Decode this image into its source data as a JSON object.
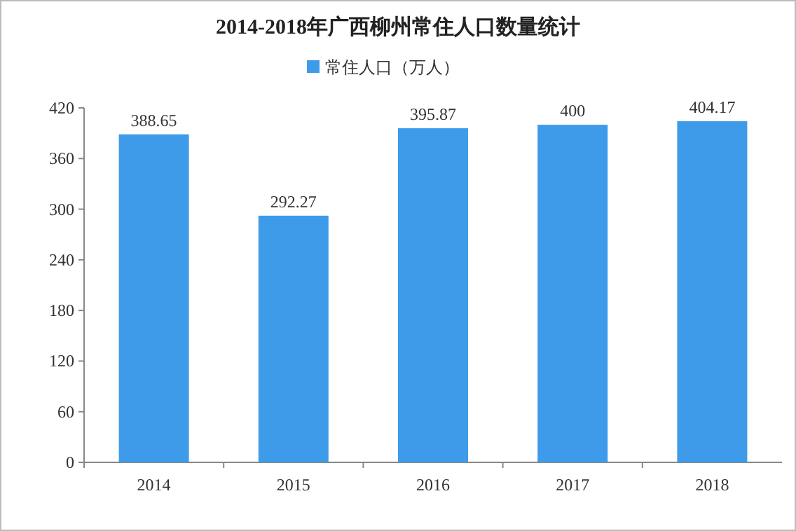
{
  "chart_data": {
    "type": "bar",
    "title": "2014-2018年广西柳州常住人口数量统计",
    "categories": [
      "2014",
      "2015",
      "2016",
      "2017",
      "2018"
    ],
    "series": [
      {
        "name": "常住人口（万人）",
        "color": "#3d9be9",
        "values": [
          388.65,
          292.27,
          395.87,
          400,
          404.17
        ]
      }
    ],
    "ylim": [
      0,
      420
    ],
    "yticks": [
      0,
      60,
      120,
      180,
      240,
      300,
      360,
      420
    ],
    "data_labels": true,
    "legend": "top",
    "grid": false
  }
}
